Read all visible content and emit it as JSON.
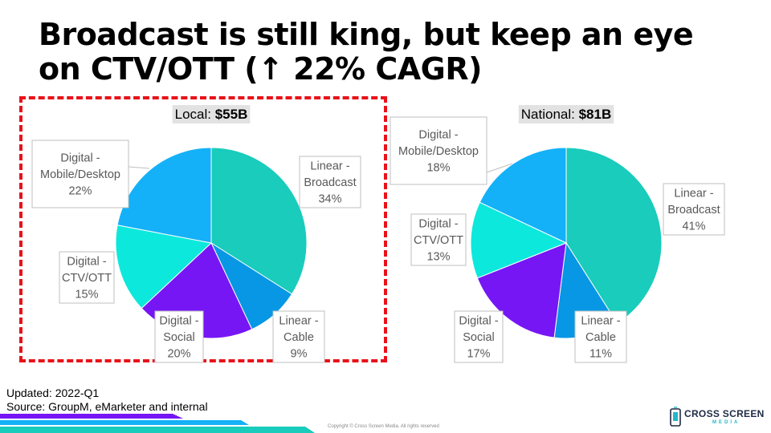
{
  "slide": {
    "title": "Broadcast is still king, but keep an eye on CTV/OTT (↑ 22% CAGR)",
    "updated": "Updated: 2022-Q1",
    "source": "Source: GroupM, eMarketer and internal",
    "copyright": "Copyright © Cross Screen Media. All rights reserved",
    "logo": {
      "line1": "CROSS SCREEN",
      "line2": "MEDIA",
      "icon": "phone-screen-icon"
    }
  },
  "colors": {
    "Linear - Broadcast": "#19ccbc",
    "Linear - Cable": "#0897e4",
    "Digital - Social": "#7616f5",
    "Digital - CTV/OTT": "#0de8dc",
    "Digital - Mobile/Desktop": "#14b1f8",
    "highlight_border": "#e8121a",
    "footer_stripes": [
      "#7616f5",
      "#14b1f8",
      "#19ccbc"
    ]
  },
  "chart_data": [
    {
      "type": "pie",
      "title_prefix": "Local: ",
      "title_value": "$55B",
      "slices": [
        {
          "label": [
            "Linear -",
            "Broadcast"
          ],
          "category": "Linear - Broadcast",
          "value": 34,
          "value_label": "34%"
        },
        {
          "label": [
            "Linear -",
            "Cable"
          ],
          "category": "Linear - Cable",
          "value": 9,
          "value_label": "9%"
        },
        {
          "label": [
            "Digital -",
            "Social"
          ],
          "category": "Digital - Social",
          "value": 20,
          "value_label": "20%"
        },
        {
          "label": [
            "Digital -",
            "CTV/OTT"
          ],
          "category": "Digital - CTV/OTT",
          "value": 15,
          "value_label": "15%"
        },
        {
          "label": [
            "Digital -",
            "Mobile/Desktop"
          ],
          "category": "Digital - Mobile/Desktop",
          "value": 22,
          "value_label": "22%"
        }
      ]
    },
    {
      "type": "pie",
      "title_prefix": "National: ",
      "title_value": "$81B",
      "slices": [
        {
          "label": [
            "Linear -",
            "Broadcast"
          ],
          "category": "Linear - Broadcast",
          "value": 41,
          "value_label": "41%"
        },
        {
          "label": [
            "Linear -",
            "Cable"
          ],
          "category": "Linear - Cable",
          "value": 11,
          "value_label": "11%"
        },
        {
          "label": [
            "Digital -",
            "Social"
          ],
          "category": "Digital - Social",
          "value": 17,
          "value_label": "17%"
        },
        {
          "label": [
            "Digital -",
            "CTV/OTT"
          ],
          "category": "Digital - CTV/OTT",
          "value": 13,
          "value_label": "13%"
        },
        {
          "label": [
            "Digital -",
            "Mobile/Desktop"
          ],
          "category": "Digital - Mobile/Desktop",
          "value": 18,
          "value_label": "18%"
        }
      ]
    }
  ]
}
